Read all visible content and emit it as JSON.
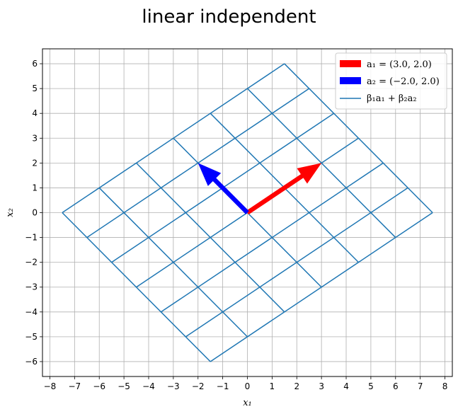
{
  "chart_data": {
    "type": "line",
    "title": "linear independent",
    "xlabel": "x₁",
    "ylabel": "x₂",
    "xlim": [
      -8.3,
      8.3
    ],
    "ylim": [
      -6.6,
      6.6
    ],
    "xticks": [
      -8,
      -7,
      -6,
      -5,
      -4,
      -3,
      -2,
      -1,
      0,
      1,
      2,
      3,
      4,
      5,
      6,
      7,
      8
    ],
    "yticks": [
      -6,
      -5,
      -4,
      -3,
      -2,
      -1,
      0,
      1,
      2,
      3,
      4,
      5,
      6
    ],
    "grid": true,
    "legend_position": "upper right",
    "vectors": [
      {
        "name": "a₁ = (3.0, 2.0)",
        "x": 3.0,
        "y": 2.0,
        "color": "#ff0000"
      },
      {
        "name": "a₂ = (−2.0, 2.0)",
        "x": -2.0,
        "y": 2.0,
        "color": "#0000ff"
      }
    ],
    "span_lines": {
      "name": "β₁a₁ + β₂a₂",
      "beta_range": [
        -1.5,
        1.5
      ],
      "beta_step": 0.5,
      "color": "#1f77b4"
    }
  }
}
